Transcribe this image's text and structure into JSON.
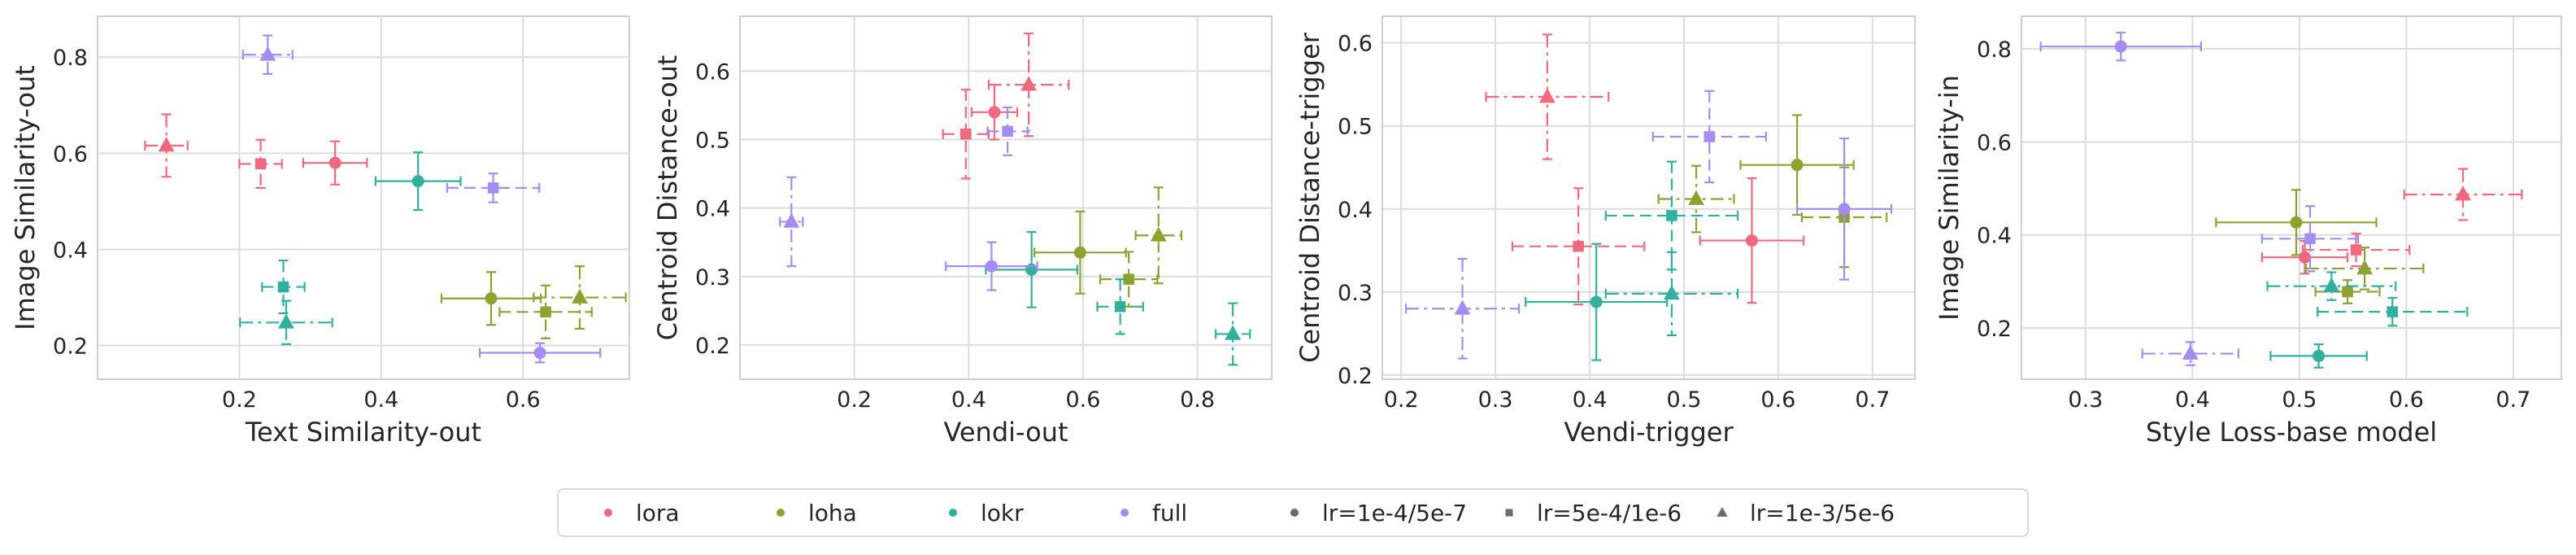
{
  "chart_data": {
    "type": "scatter",
    "colors": {
      "lora": "#f0697e",
      "loha": "#8ea232",
      "lokr": "#31b0a0",
      "full": "#a48cf2",
      "gray": "#6b6b6b"
    },
    "legend": {
      "placement": "bottom-center",
      "items": [
        {
          "label": "lora",
          "kind": "algo",
          "key": "lora"
        },
        {
          "label": "loha",
          "kind": "algo",
          "key": "loha"
        },
        {
          "label": "lokr",
          "kind": "algo",
          "key": "lokr"
        },
        {
          "label": "full",
          "kind": "algo",
          "key": "full"
        },
        {
          "label": "lr=1e-4/5e-7",
          "kind": "lr",
          "key": "lr1"
        },
        {
          "label": "lr=5e-4/1e-6",
          "kind": "lr",
          "key": "lr2"
        },
        {
          "label": "lr=1e-3/5e-6",
          "kind": "lr",
          "key": "lr3"
        }
      ]
    },
    "panels": [
      {
        "xlabel": "Text Similarity-out",
        "ylabel": "Image Similarity-out",
        "xlim": [
          0.0,
          0.75
        ],
        "ylim": [
          0.13,
          0.885
        ],
        "xticks": [
          0.2,
          0.4,
          0.6
        ],
        "yticks": [
          0.2,
          0.4,
          0.6,
          0.8
        ],
        "points": [
          {
            "algo": "lora",
            "lr": "lr1",
            "x": 0.335,
            "y": 0.58,
            "xerr": 0.045,
            "yerr": 0.045
          },
          {
            "algo": "lora",
            "lr": "lr2",
            "x": 0.23,
            "y": 0.578,
            "xerr": 0.03,
            "yerr": 0.05
          },
          {
            "algo": "lora",
            "lr": "lr3",
            "x": 0.097,
            "y": 0.616,
            "xerr": 0.03,
            "yerr": 0.065
          },
          {
            "algo": "loha",
            "lr": "lr1",
            "x": 0.555,
            "y": 0.298,
            "xerr": 0.07,
            "yerr": 0.055
          },
          {
            "algo": "loha",
            "lr": "lr2",
            "x": 0.632,
            "y": 0.27,
            "xerr": 0.065,
            "yerr": 0.055
          },
          {
            "algo": "loha",
            "lr": "lr3",
            "x": 0.68,
            "y": 0.3,
            "xerr": 0.065,
            "yerr": 0.065
          },
          {
            "algo": "lokr",
            "lr": "lr1",
            "x": 0.452,
            "y": 0.542,
            "xerr": 0.06,
            "yerr": 0.06
          },
          {
            "algo": "lokr",
            "lr": "lr2",
            "x": 0.262,
            "y": 0.322,
            "xerr": 0.03,
            "yerr": 0.055
          },
          {
            "algo": "lokr",
            "lr": "lr3",
            "x": 0.266,
            "y": 0.248,
            "xerr": 0.065,
            "yerr": 0.045
          },
          {
            "algo": "full",
            "lr": "lr1",
            "x": 0.624,
            "y": 0.185,
            "xerr": 0.085,
            "yerr": 0.02
          },
          {
            "algo": "full",
            "lr": "lr2",
            "x": 0.558,
            "y": 0.528,
            "xerr": 0.065,
            "yerr": 0.03
          },
          {
            "algo": "full",
            "lr": "lr3",
            "x": 0.24,
            "y": 0.805,
            "xerr": 0.035,
            "yerr": 0.04
          }
        ]
      },
      {
        "xlabel": "Vendi-out",
        "ylabel": "Centroid Distance-out",
        "xlim": [
          0.0,
          0.93
        ],
        "ylim": [
          0.15,
          0.68
        ],
        "xticks": [
          0.2,
          0.4,
          0.6,
          0.8
        ],
        "yticks": [
          0.2,
          0.3,
          0.4,
          0.5,
          0.6
        ],
        "points": [
          {
            "algo": "lora",
            "lr": "lr1",
            "x": 0.445,
            "y": 0.54,
            "xerr": 0.04,
            "yerr": 0.04
          },
          {
            "algo": "lora",
            "lr": "lr2",
            "x": 0.395,
            "y": 0.508,
            "xerr": 0.04,
            "yerr": 0.065
          },
          {
            "algo": "lora",
            "lr": "lr3",
            "x": 0.505,
            "y": 0.58,
            "xerr": 0.07,
            "yerr": 0.075
          },
          {
            "algo": "loha",
            "lr": "lr1",
            "x": 0.595,
            "y": 0.335,
            "xerr": 0.08,
            "yerr": 0.06
          },
          {
            "algo": "loha",
            "lr": "lr2",
            "x": 0.68,
            "y": 0.296,
            "xerr": 0.05,
            "yerr": 0.04
          },
          {
            "algo": "loha",
            "lr": "lr3",
            "x": 0.732,
            "y": 0.36,
            "xerr": 0.04,
            "yerr": 0.07
          },
          {
            "algo": "lokr",
            "lr": "lr1",
            "x": 0.51,
            "y": 0.31,
            "xerr": 0.08,
            "yerr": 0.055
          },
          {
            "algo": "lokr",
            "lr": "lr2",
            "x": 0.665,
            "y": 0.256,
            "xerr": 0.04,
            "yerr": 0.04
          },
          {
            "algo": "lokr",
            "lr": "lr3",
            "x": 0.862,
            "y": 0.216,
            "xerr": 0.03,
            "yerr": 0.045
          },
          {
            "algo": "full",
            "lr": "lr1",
            "x": 0.44,
            "y": 0.315,
            "xerr": 0.08,
            "yerr": 0.035
          },
          {
            "algo": "full",
            "lr": "lr2",
            "x": 0.468,
            "y": 0.512,
            "xerr": 0.035,
            "yerr": 0.035
          },
          {
            "algo": "full",
            "lr": "lr3",
            "x": 0.09,
            "y": 0.38,
            "xerr": 0.02,
            "yerr": 0.065
          }
        ]
      },
      {
        "xlabel": "Vendi-trigger",
        "ylabel": "Centroid Distance-trigger",
        "xlim": [
          0.18,
          0.745
        ],
        "ylim": [
          0.195,
          0.632
        ],
        "xticks": [
          0.2,
          0.3,
          0.4,
          0.5,
          0.6,
          0.7
        ],
        "yticks": [
          0.2,
          0.3,
          0.4,
          0.5,
          0.6
        ],
        "points": [
          {
            "algo": "lora",
            "lr": "lr1",
            "x": 0.572,
            "y": 0.362,
            "xerr": 0.055,
            "yerr": 0.075
          },
          {
            "algo": "lora",
            "lr": "lr2",
            "x": 0.388,
            "y": 0.355,
            "xerr": 0.07,
            "yerr": 0.07
          },
          {
            "algo": "lora",
            "lr": "lr3",
            "x": 0.355,
            "y": 0.535,
            "xerr": 0.065,
            "yerr": 0.075
          },
          {
            "algo": "loha",
            "lr": "lr1",
            "x": 0.62,
            "y": 0.453,
            "xerr": 0.06,
            "yerr": 0.06
          },
          {
            "algo": "loha",
            "lr": "lr2",
            "x": 0.67,
            "y": 0.39,
            "xerr": 0.045,
            "yerr": 0.06
          },
          {
            "algo": "loha",
            "lr": "lr3",
            "x": 0.513,
            "y": 0.412,
            "xerr": 0.04,
            "yerr": 0.04
          },
          {
            "algo": "lokr",
            "lr": "lr1",
            "x": 0.407,
            "y": 0.288,
            "xerr": 0.075,
            "yerr": 0.07
          },
          {
            "algo": "lokr",
            "lr": "lr2",
            "x": 0.487,
            "y": 0.392,
            "xerr": 0.07,
            "yerr": 0.065
          },
          {
            "algo": "lokr",
            "lr": "lr3",
            "x": 0.487,
            "y": 0.298,
            "xerr": 0.07,
            "yerr": 0.05
          },
          {
            "algo": "full",
            "lr": "lr1",
            "x": 0.67,
            "y": 0.4,
            "xerr": 0.05,
            "yerr": 0.085
          },
          {
            "algo": "full",
            "lr": "lr2",
            "x": 0.527,
            "y": 0.487,
            "xerr": 0.06,
            "yerr": 0.055
          },
          {
            "algo": "full",
            "lr": "lr3",
            "x": 0.265,
            "y": 0.28,
            "xerr": 0.06,
            "yerr": 0.06
          }
        ]
      },
      {
        "xlabel": "Style Loss-base model",
        "ylabel": "Image Similarity-in",
        "xlim": [
          0.24,
          0.745
        ],
        "ylim": [
          0.09,
          0.87
        ],
        "xticks": [
          0.3,
          0.4,
          0.5,
          0.6,
          0.7
        ],
        "yticks": [
          0.2,
          0.4,
          0.6,
          0.8
        ],
        "points": [
          {
            "algo": "lora",
            "lr": "lr1",
            "x": 0.505,
            "y": 0.352,
            "xerr": 0.04,
            "yerr": 0.035
          },
          {
            "algo": "lora",
            "lr": "lr2",
            "x": 0.553,
            "y": 0.368,
            "xerr": 0.05,
            "yerr": 0.035
          },
          {
            "algo": "lora",
            "lr": "lr3",
            "x": 0.653,
            "y": 0.487,
            "xerr": 0.055,
            "yerr": 0.055
          },
          {
            "algo": "loha",
            "lr": "lr1",
            "x": 0.497,
            "y": 0.427,
            "xerr": 0.075,
            "yerr": 0.07
          },
          {
            "algo": "loha",
            "lr": "lr2",
            "x": 0.545,
            "y": 0.278,
            "xerr": 0.03,
            "yerr": 0.025
          },
          {
            "algo": "loha",
            "lr": "lr3",
            "x": 0.561,
            "y": 0.328,
            "xerr": 0.055,
            "yerr": 0.045
          },
          {
            "algo": "lokr",
            "lr": "lr1",
            "x": 0.518,
            "y": 0.14,
            "xerr": 0.045,
            "yerr": 0.025
          },
          {
            "algo": "lokr",
            "lr": "lr2",
            "x": 0.587,
            "y": 0.235,
            "xerr": 0.07,
            "yerr": 0.03
          },
          {
            "algo": "lokr",
            "lr": "lr3",
            "x": 0.53,
            "y": 0.29,
            "xerr": 0.06,
            "yerr": 0.03
          },
          {
            "algo": "full",
            "lr": "lr1",
            "x": 0.333,
            "y": 0.805,
            "xerr": 0.075,
            "yerr": 0.03
          },
          {
            "algo": "full",
            "lr": "lr2",
            "x": 0.51,
            "y": 0.392,
            "xerr": 0.045,
            "yerr": 0.07
          },
          {
            "algo": "full",
            "lr": "lr3",
            "x": 0.398,
            "y": 0.145,
            "xerr": 0.045,
            "yerr": 0.025
          }
        ]
      }
    ]
  }
}
